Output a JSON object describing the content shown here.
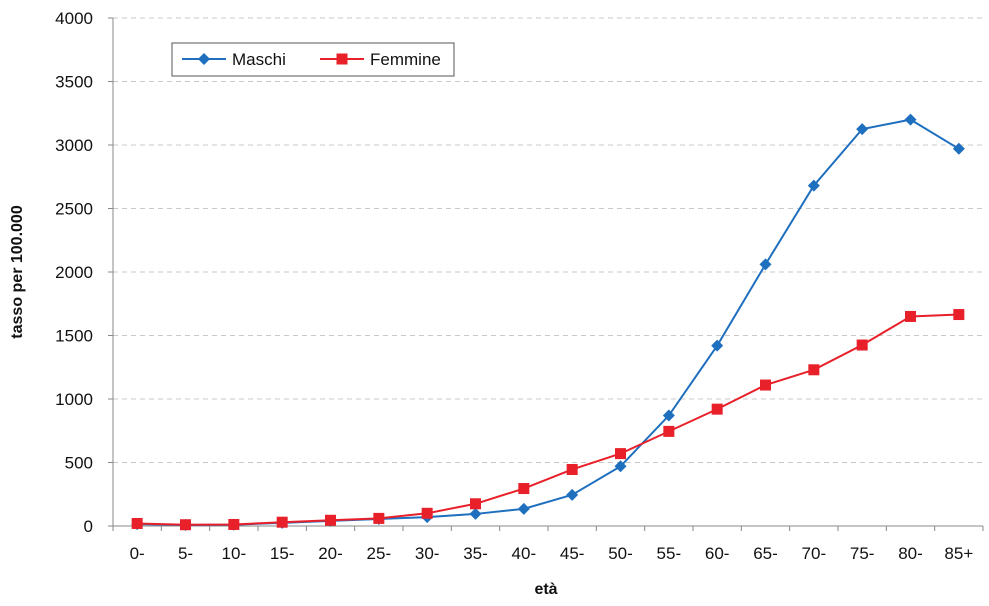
{
  "chart_data": {
    "type": "line",
    "title": "",
    "xlabel": "età",
    "ylabel": "tasso per 100.000",
    "ylim": [
      0,
      4000
    ],
    "y_ticks": [
      0,
      500,
      1000,
      1500,
      2000,
      2500,
      3000,
      3500,
      4000
    ],
    "grid": "horizontal-dashed",
    "legend_position": "top-left",
    "categories": [
      "0-",
      "5-",
      "10-",
      "15-",
      "20-",
      "25-",
      "30-",
      "35-",
      "40-",
      "45-",
      "50-",
      "55-",
      "60-",
      "65-",
      "70-",
      "75-",
      "80-",
      "85+"
    ],
    "series": [
      {
        "name": "Maschi",
        "color": "#1f6fbf",
        "marker": "diamond",
        "values": [
          15,
          8,
          10,
          25,
          40,
          55,
          70,
          95,
          135,
          245,
          470,
          870,
          1420,
          2060,
          2680,
          3125,
          3200,
          2970
        ]
      },
      {
        "name": "Femmine",
        "color": "#e8202a",
        "marker": "square",
        "values": [
          20,
          10,
          12,
          30,
          45,
          60,
          100,
          175,
          295,
          445,
          570,
          745,
          920,
          1110,
          1230,
          1425,
          1650,
          1665
        ]
      }
    ]
  }
}
